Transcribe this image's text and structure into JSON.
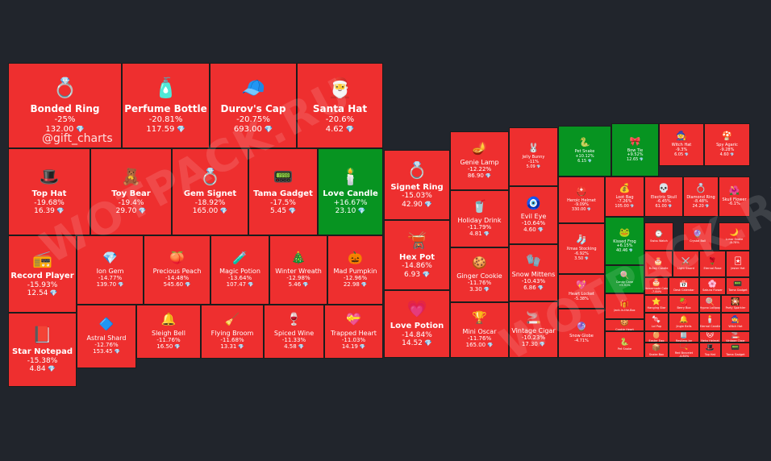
{
  "handle": "@gift_charts",
  "watermark": "WOTPACK.RU",
  "colors": {
    "down": "#ee2f2f",
    "up": "#079421",
    "background": "#21252c"
  },
  "chart_data": {
    "type": "treemap",
    "value_unit": "💎",
    "items": [
      {
        "name": "Bonded Ring",
        "change": "-25%",
        "price": "132.00",
        "icon": "ring"
      },
      {
        "name": "Perfume Bottle",
        "change": "-20.81%",
        "price": "117.59",
        "icon": "perfume"
      },
      {
        "name": "Durov's Cap",
        "change": "-20.75%",
        "price": "693.00",
        "icon": "cap"
      },
      {
        "name": "Santa Hat",
        "change": "-20.6%",
        "price": "4.62",
        "icon": "santa-hat"
      },
      {
        "name": "Top Hat",
        "change": "-19.68%",
        "price": "16.39",
        "icon": "top-hat"
      },
      {
        "name": "Toy Bear",
        "change": "-19.4%",
        "price": "29.70",
        "icon": "teddy-bear"
      },
      {
        "name": "Gem Signet",
        "change": "-18.92%",
        "price": "165.00",
        "icon": "signet"
      },
      {
        "name": "Tama Gadget",
        "change": "-17.5%",
        "price": "5.45",
        "icon": "gadget"
      },
      {
        "name": "Love Candle",
        "change": "+16.67%",
        "price": "23.10",
        "icon": "candle"
      },
      {
        "name": "Record Player",
        "change": "-15.93%",
        "price": "12.54",
        "icon": "record-player"
      },
      {
        "name": "Ion Gem",
        "change": "-14.77%",
        "price": "139.70",
        "icon": "gem"
      },
      {
        "name": "Precious Peach",
        "change": "-14.48%",
        "price": "545.60",
        "icon": "peach"
      },
      {
        "name": "Magic Potion",
        "change": "-13.64%",
        "price": "107.47",
        "icon": "potion"
      },
      {
        "name": "Winter Wreath",
        "change": "-12.98%",
        "price": "5.46",
        "icon": "wreath"
      },
      {
        "name": "Mad Pumpkin",
        "change": "-12.96%",
        "price": "22.98",
        "icon": "pumpkin"
      },
      {
        "name": "Star Notepad",
        "change": "-15.38%",
        "price": "4.84",
        "icon": "notepad"
      },
      {
        "name": "Astral Shard",
        "change": "-12.76%",
        "price": "153.45",
        "icon": "shard"
      },
      {
        "name": "Sleigh Bell",
        "change": "-11.76%",
        "price": "16.50",
        "icon": "bell"
      },
      {
        "name": "Flying Broom",
        "change": "-11.68%",
        "price": "13.31",
        "icon": "broom"
      },
      {
        "name": "Spiced Wine",
        "change": "-11.33%",
        "price": "4.58",
        "icon": "wine"
      },
      {
        "name": "Trapped Heart",
        "change": "-11.03%",
        "price": "14.19",
        "icon": "heart"
      },
      {
        "name": "Signet Ring",
        "change": "-15.03%",
        "price": "42.90",
        "icon": "signet-ring"
      },
      {
        "name": "Hex Pot",
        "change": "-14.86%",
        "price": "6.93",
        "icon": "cauldron"
      },
      {
        "name": "Love Potion",
        "change": "-14.84%",
        "price": "14.52",
        "icon": "love-potion"
      },
      {
        "name": "Genie Lamp",
        "change": "-12.22%",
        "price": "86.90",
        "icon": "lamp"
      },
      {
        "name": "Holiday Drink",
        "change": "-11.79%",
        "price": "4.81",
        "icon": "drink"
      },
      {
        "name": "Ginger Cookie",
        "change": "-11.76%",
        "price": "3.30",
        "icon": "cookie"
      },
      {
        "name": "Mini Oscar",
        "change": "-11.76%",
        "price": "165.00",
        "icon": "trophy"
      },
      {
        "name": "Jelly Bunny",
        "change": "-11%",
        "price": "5.09",
        "icon": "bunny"
      },
      {
        "name": "Evil Eye",
        "change": "-10.64%",
        "price": "4.60",
        "icon": "eye"
      },
      {
        "name": "Snow Mittens",
        "change": "-10.43%",
        "price": "6.86",
        "icon": "mittens"
      },
      {
        "name": "Vintage Cigar",
        "change": "-10.23%",
        "price": "17.30",
        "icon": "cigar"
      },
      {
        "name": "Pet Snake",
        "change": "+10.12%",
        "price": "6.15",
        "icon": "snake"
      },
      {
        "name": "Bow Tie",
        "change": "+9.52%",
        "price": "12.65",
        "icon": "bow-tie"
      },
      {
        "name": "Witch Hat",
        "change": "-9.3%",
        "price": "6.05",
        "icon": "witch-hat"
      },
      {
        "name": "Spy Agaric",
        "change": "-9.28%",
        "price": "4.60",
        "icon": "mushroom"
      },
      {
        "name": "Heroic Helmet",
        "change": "-9.09%",
        "price": "330.00",
        "icon": "helmet"
      },
      {
        "name": "Loot Bag",
        "change": "-7.26%",
        "price": "105.00",
        "icon": "loot-bag"
      },
      {
        "name": "Electric Skull",
        "change": "-6.45%",
        "price": "61.00",
        "icon": "skull"
      },
      {
        "name": "Diamond Ring",
        "change": "-8.48%",
        "price": "24.20",
        "icon": "diamond-ring"
      },
      {
        "name": "Skull Flower",
        "change": "-6.1%",
        "price": "",
        "icon": "skull-flower"
      },
      {
        "name": "Xmas Stocking",
        "change": "-6.92%",
        "price": "3.50",
        "icon": "stocking"
      },
      {
        "name": "Kissed Frog",
        "change": "+6.15%",
        "price": "40.46",
        "icon": "frog"
      },
      {
        "name": "Swiss Watch",
        "change": "",
        "price": "",
        "icon": "watch"
      },
      {
        "name": "Crystal Ball",
        "change": "",
        "price": "",
        "icon": "crystal-ball"
      },
      {
        "name": "Lunar Snake",
        "change": "-8.78%",
        "price": "",
        "icon": "moon-snake"
      },
      {
        "name": "Heart Locket",
        "change": "-5.38%",
        "price": "",
        "icon": "locket"
      },
      {
        "name": "Candy Cane",
        "change": "+5.91%",
        "price": "",
        "icon": "candy-cane"
      },
      {
        "name": "B-Day Candle",
        "change": "",
        "price": "",
        "icon": "bday-candle"
      },
      {
        "name": "Light Sword",
        "change": "",
        "price": "",
        "icon": "light-sword"
      },
      {
        "name": "Eternal Rose",
        "change": "",
        "price": "",
        "icon": "rose"
      },
      {
        "name": "Jester Hat",
        "change": "",
        "price": "",
        "icon": "jester-hat"
      },
      {
        "name": "Jack-in-the-Box",
        "change": "",
        "price": "",
        "icon": "jack-in-box"
      },
      {
        "name": "Snow Globe",
        "change": "-4.71%",
        "price": "",
        "icon": "snow-globe"
      },
      {
        "name": "Homemade Cake",
        "change": "-7.84%",
        "price": "",
        "icon": "cake"
      },
      {
        "name": "Desk Calendar",
        "change": "",
        "price": "",
        "icon": "calendar"
      },
      {
        "name": "Sakura Flower",
        "change": "",
        "price": "",
        "icon": "sakura"
      },
      {
        "name": "Tama Gadget",
        "change": "",
        "price": "",
        "icon": "gadget"
      },
      {
        "name": "Hanging Star",
        "change": "",
        "price": "",
        "icon": "star"
      },
      {
        "name": "Berry Box",
        "change": "",
        "price": "",
        "icon": "berry-box"
      },
      {
        "name": "Hypno Lollipop",
        "change": "",
        "price": "",
        "icon": "lollipop"
      },
      {
        "name": "Party Sparkler",
        "change": "",
        "price": "",
        "icon": "sparkler"
      },
      {
        "name": "Cookie Heart",
        "change": "",
        "price": "",
        "icon": "cookie-heart"
      },
      {
        "name": "Lol Pop",
        "change": "",
        "price": "",
        "icon": "lolpop"
      },
      {
        "name": "Jingle Bells",
        "change": "",
        "price": "",
        "icon": "bells"
      },
      {
        "name": "Eternal Candle",
        "change": "",
        "price": "",
        "icon": "eternal-candle"
      },
      {
        "name": "Witch Hat",
        "change": "",
        "price": "",
        "icon": "witch-hat"
      },
      {
        "name": "Easter Egg",
        "change": "",
        "price": "",
        "icon": "egg"
      },
      {
        "name": "Restless Jar",
        "change": "",
        "price": "",
        "icon": "jar"
      },
      {
        "name": "Neko Helmet",
        "change": "",
        "price": "",
        "icon": "neko-helmet"
      },
      {
        "name": "Vintage Cigar",
        "change": "",
        "price": "",
        "icon": "cigar"
      },
      {
        "name": "Top Hat",
        "change": "",
        "price": "",
        "icon": "top-hat"
      },
      {
        "name": "Tama Gadget",
        "change": "",
        "price": "",
        "icon": "gadget"
      },
      {
        "name": "Pet Snake",
        "change": "",
        "price": "",
        "icon": "snake"
      },
      {
        "name": "Snake Box",
        "change": "",
        "price": "",
        "icon": "snake-box"
      },
      {
        "name": "Red Bracelet",
        "change": "-4.80%",
        "price": "",
        "icon": "bracelet"
      },
      {
        "name": "Santa Hat",
        "change": "",
        "price": "",
        "icon": "santa-hat"
      },
      {
        "name": "Snow Mittens",
        "change": "",
        "price": "",
        "icon": "mittens"
      }
    ]
  }
}
